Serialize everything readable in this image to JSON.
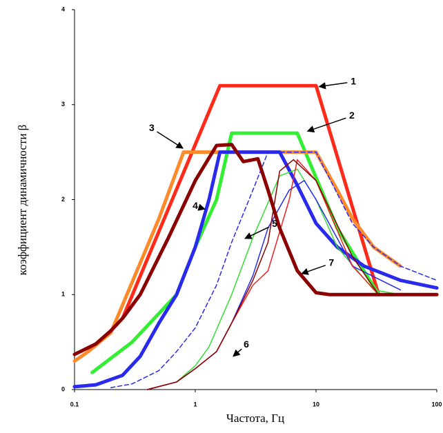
{
  "chart_data": {
    "type": "line",
    "x_label": "Частота, Гц",
    "y_label": "коэффициент динамичности β",
    "log_x": true,
    "xlim": [
      0.1,
      100
    ],
    "xticks": [
      0.1,
      1,
      10,
      100
    ],
    "ylim": [
      0,
      4
    ],
    "yticks": [
      0,
      1,
      2,
      3,
      4
    ],
    "series": [
      {
        "color": "#ff2a1a",
        "width": 5,
        "x": [
          0.25,
          1.6,
          10,
          33
        ],
        "values": [
          0.75,
          3.2,
          3.2,
          1.0
        ]
      },
      {
        "color": "#33ee33",
        "width": 5,
        "x": [
          0.14,
          0.3,
          0.7,
          1,
          1.5,
          2,
          7,
          15,
          33
        ],
        "values": [
          0.18,
          0.5,
          1.0,
          1.5,
          2.0,
          2.7,
          2.7,
          1.7,
          1.0
        ]
      },
      {
        "color": "#ff8a2a",
        "width": 5,
        "x": [
          0.1,
          0.13,
          0.2,
          0.5,
          0.8,
          10,
          15,
          20,
          30,
          50
        ],
        "values": [
          0.3,
          0.4,
          0.6,
          1.8,
          2.5,
          2.5,
          2.1,
          1.8,
          1.5,
          1.3
        ]
      },
      {
        "color": "#2a2aee",
        "width": 5,
        "x": [
          0.1,
          0.15,
          0.25,
          0.35,
          0.5,
          0.7,
          1,
          1.3,
          1.6,
          5,
          7,
          10,
          15,
          25,
          50,
          100
        ],
        "values": [
          0.03,
          0.05,
          0.15,
          0.35,
          0.7,
          1.0,
          1.5,
          2.0,
          2.5,
          2.5,
          2.15,
          1.75,
          1.5,
          1.3,
          1.15,
          1.07
        ]
      },
      {
        "color": "#2a2aee",
        "width": 1.5,
        "dash": true,
        "x": [
          0.2,
          0.3,
          0.5,
          0.7,
          1,
          1.5,
          2,
          3,
          4,
          10,
          20,
          30,
          50,
          100
        ],
        "values": [
          0.02,
          0.06,
          0.2,
          0.4,
          0.65,
          1.1,
          1.55,
          2.1,
          2.5,
          2.5,
          1.75,
          1.5,
          1.3,
          1.15
        ]
      },
      {
        "color": "#33dd33",
        "width": 1.5,
        "x": [
          0.4,
          0.7,
          1,
          1.3,
          2,
          3,
          5,
          7,
          10,
          15,
          30,
          50
        ],
        "values": [
          0,
          0.08,
          0.25,
          0.45,
          1.0,
          1.6,
          2.25,
          2.32,
          2.0,
          1.5,
          1.05,
          1.0
        ]
      },
      {
        "color": "#2a2aee",
        "width": 1.5,
        "x": [
          0.4,
          0.7,
          1,
          1.5,
          2,
          3,
          4,
          6,
          8,
          10,
          20,
          50
        ],
        "values": [
          0,
          0.08,
          0.22,
          0.4,
          0.7,
          1.2,
          1.7,
          2.1,
          2.2,
          2.0,
          1.3,
          1.05
        ]
      },
      {
        "color": "#ee2222",
        "width": 1.5,
        "x": [
          0.4,
          0.7,
          1,
          1.5,
          2,
          3,
          4,
          6,
          7,
          10,
          20,
          33
        ],
        "values": [
          0,
          0.08,
          0.22,
          0.4,
          0.7,
          1.1,
          1.25,
          2.0,
          2.42,
          2.2,
          1.3,
          1.0
        ]
      },
      {
        "color": "#8b0000",
        "width": 1.5,
        "x": [
          0.4,
          0.7,
          1,
          1.5,
          2,
          3,
          4,
          5,
          6.5,
          10,
          20,
          33
        ],
        "values": [
          0,
          0.08,
          0.22,
          0.4,
          0.7,
          1.15,
          1.55,
          2.3,
          2.42,
          2.2,
          1.4,
          1.0
        ]
      },
      {
        "color": "#8b0000",
        "width": 5,
        "x": [
          0.1,
          0.15,
          0.2,
          0.25,
          0.35,
          0.6,
          1,
          1.5,
          2,
          2.5,
          3.3,
          4,
          5,
          7,
          10,
          13,
          20,
          100
        ],
        "values": [
          0.37,
          0.48,
          0.62,
          0.75,
          1.0,
          1.6,
          2.2,
          2.57,
          2.58,
          2.4,
          2.43,
          2.1,
          1.7,
          1.25,
          1.02,
          1.0,
          1.0,
          1.0
        ]
      }
    ],
    "annotations": [
      {
        "text": "1",
        "text_x": 20.4,
        "text_y": 3.24,
        "x": 10.6,
        "y": 3.19
      },
      {
        "text": "2",
        "text_x": 19.8,
        "text_y": 2.88,
        "x": 8.5,
        "y": 2.72
      },
      {
        "text": "3",
        "text_x": 0.436,
        "text_y": 2.75,
        "x": 0.79,
        "y": 2.54
      },
      {
        "text": "4",
        "text_x": 1.0,
        "text_y": 1.93,
        "x": 1.2,
        "y": 1.9
      },
      {
        "text": "5",
        "text_x": 4.54,
        "text_y": 1.74,
        "x": 2.58,
        "y": 1.59
      },
      {
        "text": "6",
        "text_x": 2.65,
        "text_y": 0.47,
        "x": 2.06,
        "y": 0.35
      },
      {
        "text": "7",
        "text_x": 13.4,
        "text_y": 1.33,
        "x": 7.6,
        "y": 1.22
      }
    ]
  }
}
